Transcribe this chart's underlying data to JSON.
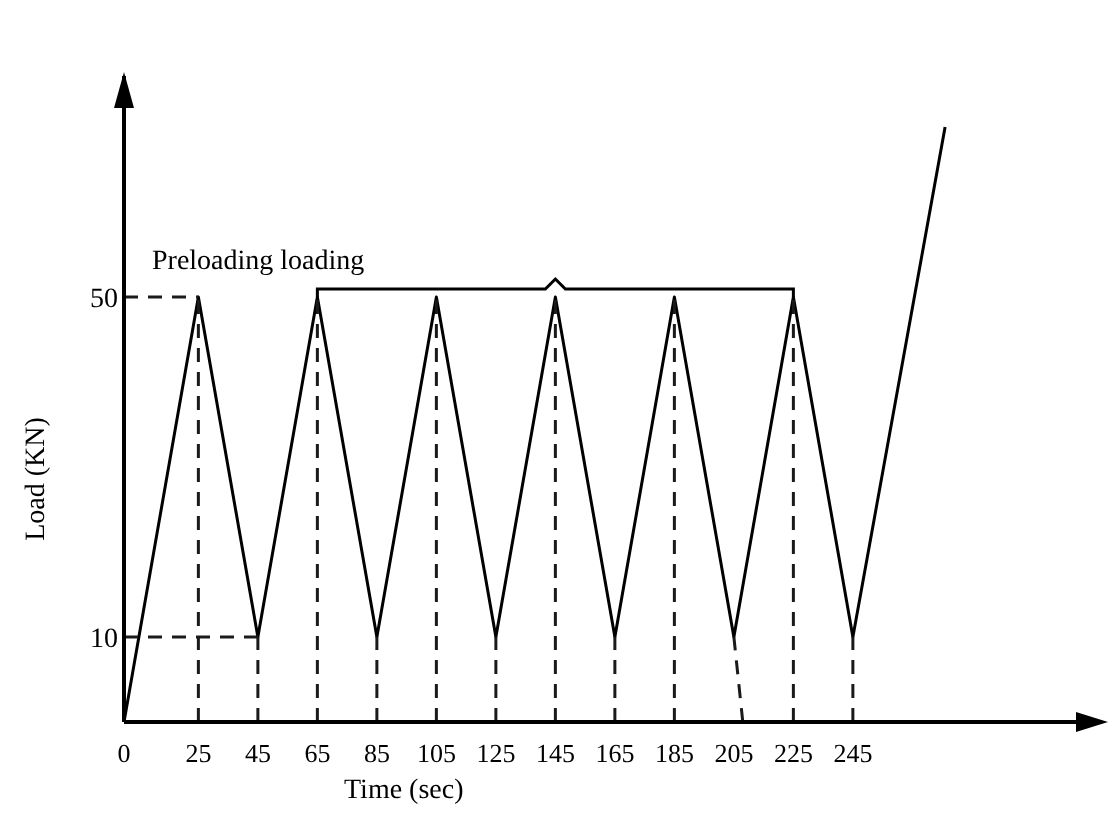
{
  "chart_data": {
    "type": "line",
    "xlabel": "Time (sec)",
    "ylabel": "Load (KN)",
    "annotations": [
      "Preloading loading"
    ],
    "x": [
      0,
      25,
      45,
      65,
      85,
      105,
      125,
      145,
      165,
      185,
      205,
      225,
      245,
      276
    ],
    "series": [
      {
        "color": "#000000",
        "values": [
          0,
          50,
          10,
          50,
          10,
          50,
          10,
          50,
          10,
          50,
          10,
          50,
          10,
          70
        ]
      },
      {
        "color": "#1a1a1a",
        "line_style": "dashed",
        "x": [
          0,
          25
        ],
        "values": [
          50,
          50
        ]
      },
      {
        "color": "#1a1a1a",
        "line_style": "dashed",
        "x": [
          0,
          45
        ],
        "values": [
          10,
          10
        ]
      },
      {
        "color": "#1a1a1a",
        "line_style": "dashed",
        "x": [
          25,
          25
        ],
        "values": [
          0,
          50
        ]
      },
      {
        "color": "#1a1a1a",
        "line_style": "dashed",
        "x": [
          45,
          45
        ],
        "values": [
          0,
          10
        ]
      },
      {
        "color": "#1a1a1a",
        "line_style": "dashed",
        "x": [
          65,
          65
        ],
        "values": [
          0,
          50
        ]
      },
      {
        "color": "#1a1a1a",
        "line_style": "dashed",
        "x": [
          85,
          85
        ],
        "values": [
          0,
          10
        ]
      },
      {
        "color": "#1a1a1a",
        "line_style": "dashed",
        "x": [
          105,
          105
        ],
        "values": [
          0,
          50
        ]
      },
      {
        "color": "#1a1a1a",
        "line_style": "dashed",
        "x": [
          125,
          125
        ],
        "values": [
          0,
          10
        ]
      },
      {
        "color": "#1a1a1a",
        "line_style": "dashed",
        "x": [
          145,
          145
        ],
        "values": [
          0,
          50
        ]
      },
      {
        "color": "#1a1a1a",
        "line_style": "dashed",
        "x": [
          165,
          165
        ],
        "values": [
          0,
          10
        ]
      },
      {
        "color": "#1a1a1a",
        "line_style": "dashed",
        "x": [
          185,
          185
        ],
        "values": [
          0,
          50
        ]
      },
      {
        "color": "#1a1a1a",
        "line_style": "dashed",
        "x": [
          208,
          205
        ],
        "values": [
          0,
          10
        ]
      },
      {
        "color": "#1a1a1a",
        "line_style": "dashed",
        "x": [
          225,
          225
        ],
        "values": [
          0,
          50
        ]
      },
      {
        "color": "#1a1a1a",
        "line_style": "dashed",
        "x": [
          245,
          245
        ],
        "values": [
          0,
          10
        ]
      }
    ],
    "xlim": [
      0,
      320
    ],
    "ylim": [
      0,
      76
    ],
    "xticks": [
      0,
      25,
      45,
      65,
      85,
      105,
      125,
      145,
      165,
      185,
      205,
      225,
      245
    ],
    "yticks": [
      10,
      50
    ],
    "grid": false,
    "marker": "none",
    "line_style": "solid"
  }
}
